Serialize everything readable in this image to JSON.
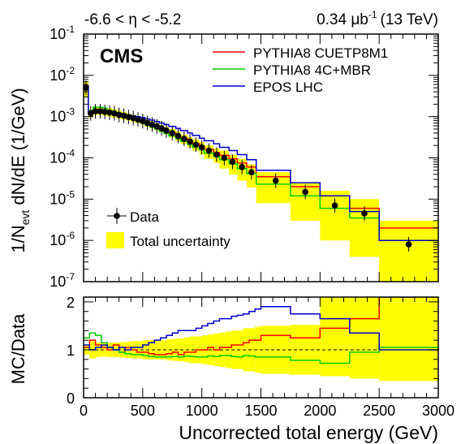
{
  "colors": {
    "pythia_cuetp8m1": "#ff0000",
    "pythia_4cmbr": "#00cc00",
    "epos": "#0000cc",
    "data": "#000000",
    "uncertainty": "#ffff00",
    "frame": "#000000"
  },
  "header": {
    "eta_range": "-6.6 < η < -5.2",
    "luminosity": "0.34 μb",
    "lumi_exponent": "-1",
    "energy": "(13 TeV)"
  },
  "cms_label": "CMS",
  "axes": {
    "top_ylabel_main": "1/N",
    "top_ylabel_sub": "evt",
    "top_ylabel_rest": " dN/dE (1/GeV)",
    "bottom_ylabel": "MC/Data",
    "xlabel": "Uncorrected total energy (GeV)",
    "x_ticks": [
      "0",
      "500",
      "1000",
      "1500",
      "2000",
      "2500",
      "3000"
    ],
    "top_y_ticks": [
      {
        "base": "10",
        "exp": "-7"
      },
      {
        "base": "10",
        "exp": "-6"
      },
      {
        "base": "10",
        "exp": "-5"
      },
      {
        "base": "10",
        "exp": "-4"
      },
      {
        "base": "10",
        "exp": "-3"
      },
      {
        "base": "10",
        "exp": "-2"
      },
      {
        "base": "10",
        "exp": "-1"
      }
    ],
    "bottom_y_ticks": [
      "0",
      "1",
      "2"
    ]
  },
  "legend": {
    "mc": [
      "PYTHIA8 CUETP8M1",
      "PYTHIA8 4C+MBR",
      "EPOS LHC"
    ],
    "data": "Data",
    "uncertainty": "Total uncertainty"
  },
  "chart_data": [
    {
      "type": "line",
      "panel": "spectrum",
      "xlabel": "Uncorrected total energy (GeV)",
      "ylabel": "1/Nevt dN/dE (1/GeV)",
      "xlim": [
        0,
        3000
      ],
      "ylim": [
        1e-07,
        0.1
      ],
      "yscale": "log",
      "grid": false,
      "legend_placement": "top-right and bottom-left",
      "data_points": {
        "name": "Data",
        "x": [
          20,
          60,
          100,
          140,
          180,
          220,
          260,
          300,
          340,
          380,
          420,
          460,
          500,
          540,
          580,
          620,
          660,
          700,
          750,
          800,
          850,
          900,
          950,
          1000,
          1060,
          1125,
          1190,
          1260,
          1340,
          1420,
          1625,
          1875,
          2125,
          2375,
          2750
        ],
        "y": [
          0.005,
          0.0012,
          0.00135,
          0.00135,
          0.0013,
          0.00125,
          0.0012,
          0.0011,
          0.00105,
          0.00098,
          0.00092,
          0.00085,
          0.00078,
          0.0007,
          0.00064,
          0.00058,
          0.00052,
          0.00046,
          0.0004,
          0.00034,
          0.00029,
          0.00025,
          0.00021,
          0.00018,
          0.00015,
          0.00012,
          0.0001,
          8e-05,
          6e-05,
          4.5e-05,
          2.8e-05,
          1.5e-05,
          7e-06,
          4.5e-06,
          8e-07
        ]
      },
      "bin_edges": [
        0,
        40,
        80,
        120,
        160,
        200,
        240,
        280,
        320,
        360,
        400,
        440,
        480,
        520,
        560,
        600,
        640,
        680,
        720,
        780,
        820,
        880,
        920,
        980,
        1020,
        1100,
        1150,
        1230,
        1300,
        1380,
        1460,
        1750,
        2000,
        2250,
        2500,
        3000
      ],
      "uncertainty_band": {
        "name": "Total uncertainty",
        "low": [
          0.003,
          0.00095,
          0.0011,
          0.0011,
          0.00105,
          0.001,
          0.00095,
          0.0009,
          0.00085,
          0.0008,
          0.00075,
          0.0007,
          0.00064,
          0.00057,
          0.00052,
          0.00047,
          0.00042,
          0.00037,
          0.00031,
          0.00026,
          0.00022,
          0.00018,
          0.00015,
          0.00012,
          9.5e-05,
          7.5e-05,
          5.5e-05,
          4e-05,
          2.8e-05,
          1.9e-05,
          8e-06,
          3e-06,
          1e-06,
          4e-07,
          1e-07
        ],
        "high": [
          0.007,
          0.0015,
          0.0017,
          0.0017,
          0.0016,
          0.0016,
          0.0015,
          0.0014,
          0.0013,
          0.0012,
          0.0011,
          0.001,
          0.00095,
          0.00085,
          0.00078,
          0.0007,
          0.00063,
          0.00056,
          0.0005,
          0.00043,
          0.00037,
          0.00032,
          0.00028,
          0.00024,
          0.0002,
          0.00017,
          0.00015,
          0.00012,
          9.5e-05,
          7e-05,
          4.5e-05,
          2.5e-05,
          1.6e-05,
          1e-05,
          3e-06
        ]
      },
      "series": [
        {
          "name": "PYTHIA8 CUETP8M1",
          "values": [
            0.0055,
            0.00125,
            0.0015,
            0.0015,
            0.0014,
            0.0013,
            0.0012,
            0.00115,
            0.0011,
            0.001,
            0.00095,
            0.00085,
            0.00078,
            0.0007,
            0.00063,
            0.00056,
            0.0005,
            0.00045,
            0.0004,
            0.00034,
            0.00029,
            0.00025,
            0.00022,
            0.00019,
            0.00016,
            0.000135,
            0.000115,
            9.5e-05,
            7.5e-05,
            6e-05,
            3.5e-05,
            2e-05,
            1.2e-05,
            6e-06,
            2e-06
          ]
        },
        {
          "name": "PYTHIA8 4C+MBR",
          "values": [
            0.0055,
            0.0014,
            0.0017,
            0.0017,
            0.0016,
            0.0014,
            0.0013,
            0.0012,
            0.0011,
            0.00098,
            0.00088,
            0.0008,
            0.00072,
            0.00063,
            0.00056,
            0.0005,
            0.00044,
            0.00039,
            0.00034,
            0.00029,
            0.00025,
            0.00021,
            0.00018,
            0.000155,
            0.00013,
            0.00011,
            9e-05,
            7.2e-05,
            5.5e-05,
            4.2e-05,
            2.3e-05,
            1.2e-05,
            6e-06,
            3.5e-06,
            1e-06
          ]
        },
        {
          "name": "EPOS LHC",
          "values": [
            0.0055,
            0.0013,
            0.0014,
            0.0014,
            0.0013,
            0.0013,
            0.00125,
            0.0012,
            0.00115,
            0.0011,
            0.00105,
            0.001,
            0.00095,
            0.00088,
            0.00082,
            0.00076,
            0.0007,
            0.00064,
            0.00058,
            0.00052,
            0.00046,
            0.0004,
            0.00035,
            0.0003,
            0.00026,
            0.00022,
            0.00018,
            0.00015,
            0.00012,
            9e-05,
            5e-05,
            2.5e-05,
            1.2e-05,
            5e-06,
            1e-06
          ]
        }
      ]
    },
    {
      "type": "line",
      "panel": "ratio",
      "xlabel": "Uncorrected total energy (GeV)",
      "ylabel": "MC/Data",
      "xlim": [
        0,
        3000
      ],
      "ylim": [
        0,
        2.1
      ],
      "reference_line": 1,
      "grid": false,
      "bin_edges": [
        0,
        50,
        100,
        150,
        200,
        250,
        300,
        350,
        400,
        450,
        500,
        550,
        600,
        650,
        700,
        750,
        800,
        850,
        900,
        950,
        1000,
        1050,
        1100,
        1150,
        1200,
        1250,
        1300,
        1350,
        1400,
        1450,
        1500,
        1750,
        2000,
        2250,
        2500,
        3000
      ],
      "uncertainty_band": {
        "name": "Total uncertainty",
        "low": [
          0.9,
          0.82,
          0.85,
          0.86,
          0.85,
          0.85,
          0.84,
          0.83,
          0.82,
          0.82,
          0.8,
          0.8,
          0.8,
          0.8,
          0.78,
          0.77,
          0.76,
          0.74,
          0.72,
          0.72,
          0.7,
          0.68,
          0.66,
          0.64,
          0.62,
          0.6,
          0.6,
          0.55,
          0.55,
          0.52,
          0.5,
          0.48,
          0.45,
          0.4,
          0.35
        ],
        "high": [
          1.1,
          1.18,
          1.15,
          1.14,
          1.15,
          1.15,
          1.16,
          1.17,
          1.18,
          1.18,
          1.2,
          1.2,
          1.2,
          1.2,
          1.22,
          1.23,
          1.24,
          1.26,
          1.28,
          1.28,
          1.3,
          1.32,
          1.34,
          1.36,
          1.38,
          1.4,
          1.4,
          1.45,
          1.45,
          1.48,
          1.5,
          1.52,
          2.1,
          2.1,
          2.1
        ]
      },
      "series": [
        {
          "name": "PYTHIA8 CUETP8M1",
          "values": [
            1.05,
            1.2,
            1.1,
            1.05,
            1.0,
            1.1,
            0.95,
            1.05,
            1.0,
            0.95,
            0.95,
            0.92,
            0.9,
            0.9,
            0.92,
            0.95,
            0.9,
            0.95,
            0.95,
            1.0,
            1.0,
            1.05,
            1.0,
            1.05,
            1.05,
            1.1,
            1.1,
            1.15,
            1.2,
            1.2,
            1.3,
            1.25,
            1.45,
            1.65,
            2.1
          ]
        },
        {
          "name": "PYTHIA8 4C+MBR",
          "values": [
            1.25,
            1.35,
            1.3,
            1.15,
            1.05,
            1.0,
            0.95,
            0.92,
            0.9,
            0.9,
            0.88,
            0.86,
            0.85,
            0.85,
            0.85,
            0.86,
            0.85,
            0.87,
            0.86,
            0.85,
            0.85,
            0.87,
            0.86,
            0.88,
            0.88,
            0.86,
            0.85,
            0.88,
            0.87,
            0.85,
            0.85,
            0.78,
            0.72,
            0.95,
            1.05
          ]
        },
        {
          "name": "EPOS LHC",
          "values": [
            1.1,
            1.0,
            1.05,
            1.1,
            1.05,
            1.0,
            1.05,
            1.0,
            1.05,
            1.05,
            1.1,
            1.15,
            1.2,
            1.25,
            1.3,
            1.35,
            1.4,
            1.4,
            1.4,
            1.45,
            1.5,
            1.55,
            1.6,
            1.65,
            1.65,
            1.7,
            1.72,
            1.75,
            1.8,
            1.85,
            1.9,
            1.75,
            1.65,
            1.35,
            1.0
          ]
        }
      ]
    }
  ]
}
